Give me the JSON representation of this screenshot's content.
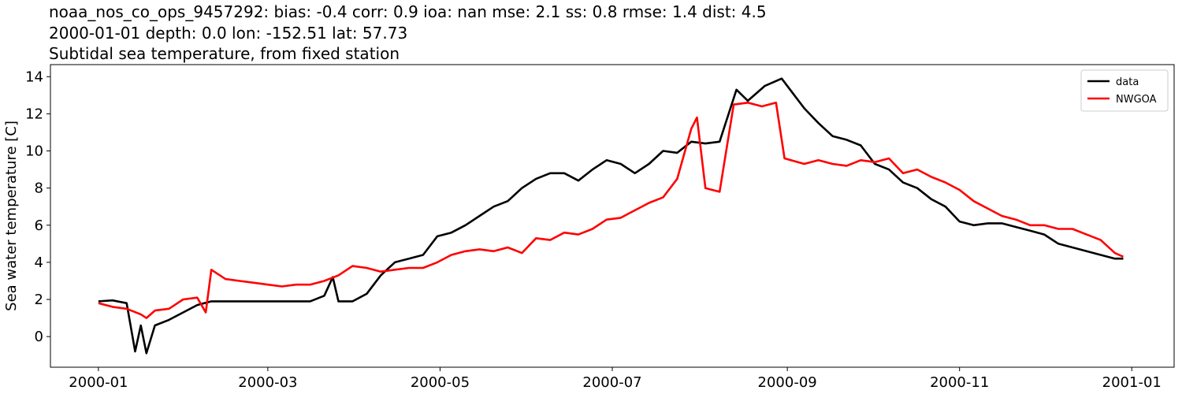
{
  "chart_data": {
    "type": "line",
    "title": [
      "noaa_nos_co_ops_9457292: bias: -0.4  corr: 0.9  ioa: nan  mse: 2.1  ss: 0.8  rmse: 1.4  dist: 4.5",
      "2000-01-01 depth: 0.0 lon: -152.51 lat: 57.73",
      "Subtidal sea temperature, from fixed station"
    ],
    "ylabel": "Sea water temperature [C]",
    "xlim": [
      -17,
      381
    ],
    "ylim": [
      -1.65,
      14.65
    ],
    "xticks": [
      {
        "value": 0,
        "label": "2000-01"
      },
      {
        "value": 60,
        "label": "2000-03"
      },
      {
        "value": 121,
        "label": "2000-05"
      },
      {
        "value": 182,
        "label": "2000-07"
      },
      {
        "value": 244,
        "label": "2000-09"
      },
      {
        "value": 305,
        "label": "2000-11"
      },
      {
        "value": 366,
        "label": "2001-01"
      }
    ],
    "yticks": [
      0,
      2,
      4,
      6,
      8,
      10,
      12,
      14
    ],
    "legend": "upper right",
    "series": [
      {
        "name": "data",
        "color": "#000000",
        "x": [
          0,
          5,
          10,
          13,
          15,
          17,
          20,
          25,
          30,
          35,
          40,
          45,
          50,
          55,
          60,
          65,
          70,
          75,
          80,
          83,
          85,
          90,
          95,
          100,
          105,
          110,
          115,
          120,
          125,
          130,
          135,
          140,
          145,
          150,
          155,
          160,
          165,
          170,
          175,
          180,
          185,
          190,
          195,
          200,
          205,
          210,
          215,
          220,
          226,
          230,
          236,
          242,
          245,
          250,
          255,
          260,
          265,
          270,
          275,
          280,
          285,
          290,
          295,
          300,
          305,
          310,
          315,
          320,
          325,
          330,
          335,
          340,
          345,
          350,
          355,
          360,
          363
        ],
        "values": [
          1.9,
          1.95,
          1.8,
          -0.8,
          0.6,
          -0.9,
          0.6,
          0.9,
          1.3,
          1.7,
          1.9,
          1.9,
          1.9,
          1.9,
          1.9,
          1.9,
          1.9,
          1.9,
          2.2,
          3.2,
          1.9,
          1.9,
          2.3,
          3.3,
          4.0,
          4.2,
          4.4,
          5.4,
          5.6,
          6.0,
          6.5,
          7.0,
          7.3,
          8.0,
          8.5,
          8.8,
          8.8,
          8.4,
          9.0,
          9.5,
          9.3,
          8.8,
          9.3,
          10.0,
          9.9,
          10.5,
          10.4,
          10.5,
          13.3,
          12.7,
          13.5,
          13.9,
          13.3,
          12.3,
          11.5,
          10.8,
          10.6,
          10.3,
          9.3,
          9.0,
          8.3,
          8.0,
          7.4,
          7.0,
          6.2,
          6.0,
          6.1,
          6.1,
          5.9,
          5.7,
          5.5,
          5.0,
          4.8,
          4.6,
          4.4,
          4.2,
          4.2
        ]
      },
      {
        "name": "NWGOA",
        "color": "#ff0000",
        "x": [
          0,
          5,
          10,
          15,
          17,
          20,
          25,
          30,
          35,
          38,
          40,
          45,
          50,
          55,
          60,
          65,
          70,
          75,
          80,
          85,
          90,
          95,
          100,
          105,
          110,
          115,
          120,
          125,
          130,
          135,
          140,
          145,
          150,
          155,
          160,
          165,
          170,
          175,
          180,
          185,
          190,
          195,
          200,
          205,
          210,
          212,
          215,
          220,
          225,
          230,
          235,
          240,
          243,
          250,
          255,
          260,
          265,
          270,
          275,
          280,
          285,
          290,
          295,
          300,
          305,
          310,
          315,
          320,
          325,
          330,
          335,
          340,
          345,
          350,
          355,
          360,
          363
        ],
        "values": [
          1.8,
          1.6,
          1.5,
          1.2,
          1.0,
          1.4,
          1.5,
          2.0,
          2.1,
          1.3,
          3.6,
          3.1,
          3.0,
          2.9,
          2.8,
          2.7,
          2.8,
          2.8,
          3.0,
          3.3,
          3.8,
          3.7,
          3.5,
          3.6,
          3.7,
          3.7,
          4.0,
          4.4,
          4.6,
          4.7,
          4.6,
          4.8,
          4.5,
          5.3,
          5.2,
          5.6,
          5.5,
          5.8,
          6.3,
          6.4,
          6.8,
          7.2,
          7.5,
          8.5,
          11.2,
          11.8,
          8.0,
          7.8,
          12.5,
          12.6,
          12.4,
          12.6,
          9.6,
          9.3,
          9.5,
          9.3,
          9.2,
          9.5,
          9.4,
          9.6,
          8.8,
          9.0,
          8.6,
          8.3,
          7.9,
          7.3,
          6.9,
          6.5,
          6.3,
          6.0,
          6.0,
          5.8,
          5.8,
          5.5,
          5.2,
          4.5,
          4.3
        ]
      }
    ]
  }
}
